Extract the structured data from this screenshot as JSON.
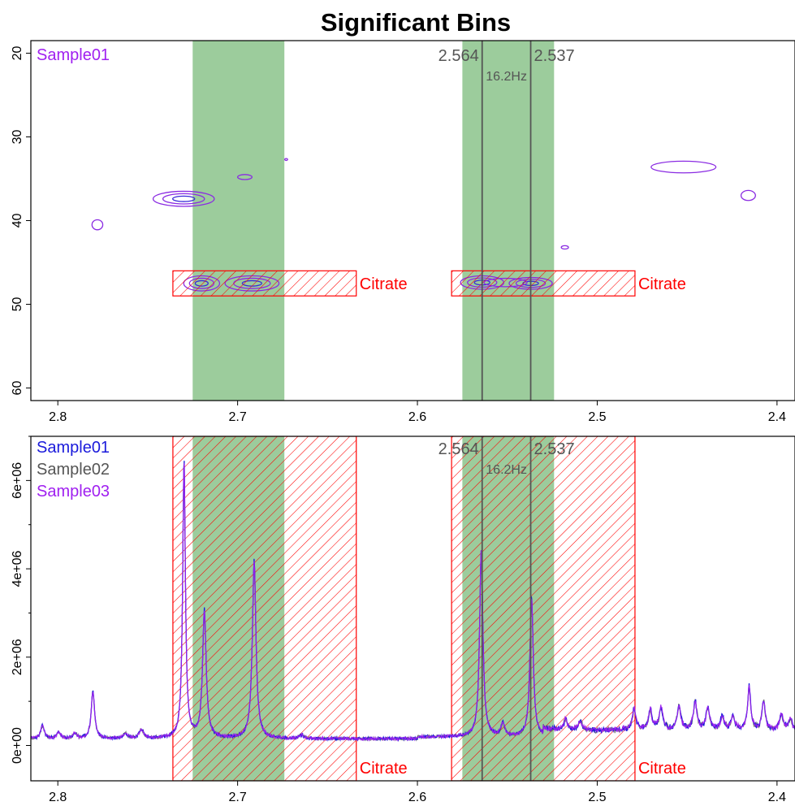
{
  "title": "Significant Bins",
  "colors": {
    "bin_fill": "#9ccc9c",
    "citrate": "#ff0000",
    "marker_line": "#555555",
    "sample01": "#1a1adb",
    "sample02": "#555555",
    "sample03": "#a020f0",
    "contour": "#8a2be2"
  },
  "chart_data": [
    {
      "type": "contour",
      "panel": "top",
      "xlim": [
        2.815,
        2.39
      ],
      "ylim": [
        18.5,
        61.5
      ],
      "y_reversed": true,
      "x_ticks": [
        "2.8",
        "2.7",
        "2.6",
        "2.5",
        "2.4"
      ],
      "x_tick_values": [
        2.8,
        2.7,
        2.6,
        2.5,
        2.4
      ],
      "y_ticks": [
        "20",
        "30",
        "40",
        "50",
        "60"
      ],
      "y_tick_values": [
        20,
        30,
        40,
        50,
        60
      ],
      "legend": [
        {
          "name": "Sample01",
          "color": "#a020f0"
        }
      ],
      "significant_bins": [
        [
          2.725,
          2.674
        ],
        [
          2.575,
          2.524
        ]
      ],
      "citrate_regions": [
        {
          "x": [
            2.736,
            2.634
          ],
          "y": [
            46,
            49
          ],
          "label": "Citrate"
        },
        {
          "x": [
            2.581,
            2.479
          ],
          "y": [
            46,
            49
          ],
          "label": "Citrate"
        }
      ],
      "markers": [
        {
          "x": 2.564,
          "label": "2.564"
        },
        {
          "x": 2.537,
          "label": "2.537"
        }
      ],
      "coupling_label": "16.2Hz",
      "peaks": [
        {
          "x": 2.73,
          "y": 37.4,
          "rx": 0.017,
          "ry": 0.9,
          "levels": 3
        },
        {
          "x": 2.778,
          "y": 40.5,
          "rx": 0.003,
          "ry": 0.6,
          "levels": 1
        },
        {
          "x": 2.696,
          "y": 34.8,
          "rx": 0.004,
          "ry": 0.3,
          "levels": 1
        },
        {
          "x": 2.673,
          "y": 32.7,
          "rx": 0.0008,
          "ry": 0.1,
          "levels": 1
        },
        {
          "x": 2.518,
          "y": 43.2,
          "rx": 0.002,
          "ry": 0.2,
          "levels": 1
        },
        {
          "x": 2.452,
          "y": 33.6,
          "rx": 0.018,
          "ry": 0.7,
          "levels": 1
        },
        {
          "x": 2.416,
          "y": 37.0,
          "rx": 0.004,
          "ry": 0.6,
          "levels": 1
        },
        {
          "x": 2.72,
          "y": 47.5,
          "rx": 0.01,
          "ry": 0.9,
          "levels": 3
        },
        {
          "x": 2.692,
          "y": 47.5,
          "rx": 0.015,
          "ry": 0.9,
          "levels": 3
        },
        {
          "x": 2.564,
          "y": 47.4,
          "rx": 0.012,
          "ry": 0.8,
          "levels": 3
        },
        {
          "x": 2.537,
          "y": 47.5,
          "rx": 0.012,
          "ry": 0.7,
          "levels": 3
        },
        {
          "x": 2.551,
          "y": 47.4,
          "rx": 0.012,
          "ry": 0.5,
          "levels": 1
        }
      ]
    },
    {
      "type": "line",
      "panel": "bottom",
      "xlim": [
        2.815,
        2.39
      ],
      "ylim": [
        -800000,
        7000000
      ],
      "x_ticks": [
        "2.8",
        "2.7",
        "2.6",
        "2.5",
        "2.4"
      ],
      "x_tick_values": [
        2.8,
        2.7,
        2.6,
        2.5,
        2.4
      ],
      "y_ticks": [
        "0e+00",
        "2e+06",
        "4e+06",
        "6e+06"
      ],
      "y_tick_values": [
        0,
        2000000,
        4000000,
        6000000
      ],
      "series": [
        {
          "name": "Sample01",
          "color": "#1a1adb"
        },
        {
          "name": "Sample02",
          "color": "#555555"
        },
        {
          "name": "Sample03",
          "color": "#a020f0"
        }
      ],
      "significant_bins": [
        [
          2.725,
          2.674
        ],
        [
          2.575,
          2.524
        ]
      ],
      "citrate_regions": [
        {
          "x": [
            2.736,
            2.634
          ],
          "label": "Citrate"
        },
        {
          "x": [
            2.581,
            2.479
          ],
          "label": "Citrate"
        }
      ],
      "markers": [
        {
          "x": 2.564,
          "label": "2.564"
        },
        {
          "x": 2.537,
          "label": "2.537"
        }
      ],
      "coupling_label": "16.2Hz",
      "baseline": 150000,
      "peaks": [
        {
          "x": 2.8085,
          "height": 300000,
          "width": 0.0012
        },
        {
          "x": 2.7995,
          "height": 150000,
          "width": 0.0012
        },
        {
          "x": 2.7905,
          "height": 120000,
          "width": 0.0012
        },
        {
          "x": 2.7805,
          "height": 1100000,
          "width": 0.0011
        },
        {
          "x": 2.7625,
          "height": 120000,
          "width": 0.0015
        },
        {
          "x": 2.7535,
          "height": 200000,
          "width": 0.0015
        },
        {
          "x": 2.7298,
          "height": 6350000,
          "width": 0.0009
        },
        {
          "x": 2.7185,
          "height": 2900000,
          "width": 0.0012
        },
        {
          "x": 2.6908,
          "height": 4050000,
          "width": 0.0012
        },
        {
          "x": 2.6645,
          "height": 80000,
          "width": 0.0015
        },
        {
          "x": 2.5645,
          "height": 4250000,
          "width": 0.0011
        },
        {
          "x": 2.5525,
          "height": 300000,
          "width": 0.0012
        },
        {
          "x": 2.5365,
          "height": 3200000,
          "width": 0.0011
        },
        {
          "x": 2.5175,
          "height": 250000,
          "width": 0.0012
        },
        {
          "x": 2.5095,
          "height": 200000,
          "width": 0.0012
        },
        {
          "x": 2.4795,
          "height": 500000,
          "width": 0.0012
        },
        {
          "x": 2.4705,
          "height": 450000,
          "width": 0.0012
        },
        {
          "x": 2.4645,
          "height": 500000,
          "width": 0.0012
        },
        {
          "x": 2.4545,
          "height": 550000,
          "width": 0.0012
        },
        {
          "x": 2.4455,
          "height": 650000,
          "width": 0.0012
        },
        {
          "x": 2.4385,
          "height": 500000,
          "width": 0.0012
        },
        {
          "x": 2.4305,
          "height": 300000,
          "width": 0.0012
        },
        {
          "x": 2.4245,
          "height": 300000,
          "width": 0.0012
        },
        {
          "x": 2.4155,
          "height": 1000000,
          "width": 0.001
        },
        {
          "x": 2.4075,
          "height": 650000,
          "width": 0.0011
        },
        {
          "x": 2.3975,
          "height": 350000,
          "width": 0.0012
        },
        {
          "x": 2.3925,
          "height": 250000,
          "width": 0.0012
        }
      ]
    }
  ]
}
